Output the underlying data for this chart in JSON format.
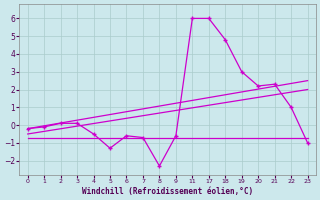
{
  "background_color": "#cce8ec",
  "grid_color": "#aacccc",
  "line_color": "#cc00cc",
  "xlabel": "Windchill (Refroidissement éolien,°C)",
  "xtick_labels": [
    "0",
    "1",
    "2",
    "3",
    "4",
    "5",
    "6",
    "7",
    "8",
    "9",
    "11",
    "17",
    "18",
    "19",
    "20",
    "21",
    "22",
    "23"
  ],
  "yticks": [
    -2,
    -1,
    0,
    1,
    2,
    3,
    4,
    5,
    6
  ],
  "ylim": [
    -2.8,
    6.8
  ],
  "series1_xi": [
    0,
    1,
    2,
    3,
    4,
    5,
    6,
    7,
    8,
    9,
    10,
    11,
    12,
    13,
    14,
    15,
    16,
    17
  ],
  "series1_y": [
    -0.2,
    -0.1,
    0.1,
    0.1,
    -0.5,
    -1.3,
    -0.6,
    -0.7,
    -2.3,
    -0.6,
    6.0,
    6.0,
    4.8,
    3.0,
    2.2,
    2.3,
    1.0,
    -1.0
  ],
  "series2_xi": [
    0,
    17
  ],
  "series2_y": [
    -0.2,
    2.5
  ],
  "series3_xi": [
    0,
    17
  ],
  "series3_y": [
    -0.5,
    2.0
  ],
  "series4_xi": [
    0,
    17
  ],
  "series4_y": [
    -0.7,
    -0.7
  ]
}
